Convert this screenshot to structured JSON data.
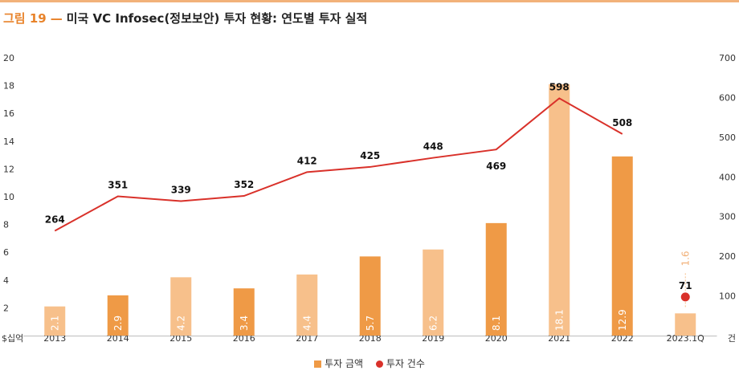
{
  "header": {
    "figure_label": "그림 19",
    "dash": "—",
    "title": "미국 VC Infosec(정보보안) 투자 현황: 연도별 투자 실적"
  },
  "chart_data": {
    "type": "bar",
    "categories": [
      "2013",
      "2014",
      "2015",
      "2016",
      "2017",
      "2018",
      "2019",
      "2020",
      "2021",
      "2022",
      "2023.1Q"
    ],
    "series": [
      {
        "name": "투자 금액",
        "type": "bar",
        "axis": "left",
        "values": [
          2.1,
          2.9,
          4.2,
          3.4,
          4.4,
          5.7,
          6.2,
          8.1,
          18.1,
          12.9,
          1.6
        ],
        "labels": [
          "2.1",
          "2.9",
          "4.2",
          "3.4",
          "4.4",
          "5.7",
          "6.2",
          "8.1",
          "18.1",
          "12.9",
          "1.6"
        ],
        "colors": [
          "#f7c08b",
          "#ef9a46",
          "#f7c08b",
          "#ef9a46",
          "#f7c08b",
          "#ef9a46",
          "#f7c08b",
          "#ef9a46",
          "#f7c08b",
          "#ef9a46",
          "#f7c08b"
        ]
      },
      {
        "name": "투자 건수",
        "type": "line",
        "axis": "right",
        "values": [
          264,
          351,
          339,
          352,
          412,
          425,
          448,
          469,
          598,
          508,
          71
        ],
        "labels": [
          "264",
          "351",
          "339",
          "352",
          "412",
          "425",
          "448",
          "469",
          "598",
          "508",
          "71"
        ],
        "color": "#d9312a"
      }
    ],
    "y_left": {
      "unit": "$십억",
      "range": [
        0,
        20
      ],
      "ticks": [
        "2",
        "4",
        "6",
        "8",
        "10",
        "12",
        "14",
        "16",
        "18",
        "20"
      ]
    },
    "y_right": {
      "unit": "건",
      "range": [
        0,
        700
      ],
      "ticks": [
        "100",
        "200",
        "300",
        "400",
        "500",
        "600",
        "700"
      ]
    },
    "legend": {
      "position": "bottom-center",
      "items": [
        {
          "label": "투자 금액",
          "color": "#ef9a46"
        },
        {
          "label": "투자 건수",
          "color": "#d9312a"
        }
      ]
    },
    "grid": false
  }
}
